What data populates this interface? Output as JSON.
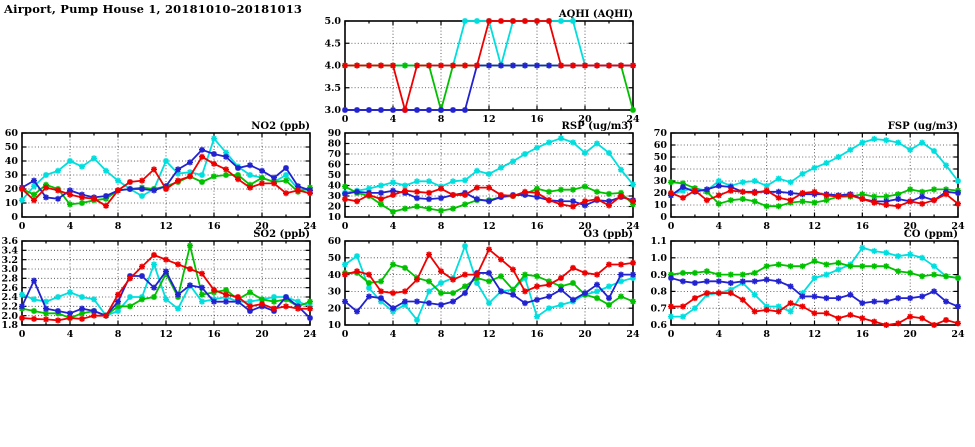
{
  "page": {
    "title": "Airport, Pump House 1, 20181010–20181013"
  },
  "colors": {
    "red": "#ee0000",
    "green": "#00c000",
    "blue": "#2222d0",
    "cyan": "#00dede"
  },
  "x_axis": {
    "min": 0,
    "max": 24,
    "major_step": 4,
    "minor_step": 2,
    "labels": [
      "0",
      "4",
      "8",
      "12",
      "16",
      "20",
      "24"
    ]
  },
  "chart_data": [
    {
      "id": "aqhi",
      "type": "line",
      "title": "AQHI (AQHI)",
      "ylim": [
        3.0,
        5.0
      ],
      "ytick_step": 0.5,
      "y_decimals": 1,
      "grid": true,
      "legend": "none",
      "x": [
        0,
        1,
        2,
        3,
        4,
        5,
        6,
        7,
        8,
        9,
        10,
        11,
        12,
        13,
        14,
        15,
        16,
        17,
        18,
        19,
        20,
        21,
        22,
        23,
        24
      ],
      "series": [
        {
          "color": "cyan",
          "values": [
            4,
            4,
            4,
            4,
            4,
            4,
            4,
            4,
            4,
            4,
            5,
            5,
            5,
            4,
            5,
            5,
            5,
            5,
            5,
            5,
            4,
            4,
            4,
            4,
            4
          ]
        },
        {
          "color": "green",
          "values": [
            4,
            4,
            4,
            4,
            4,
            4,
            4,
            4,
            3,
            4,
            4,
            4,
            4,
            4,
            4,
            4,
            4,
            4,
            4,
            4,
            4,
            4,
            4,
            4,
            3
          ]
        },
        {
          "color": "blue",
          "values": [
            3,
            3,
            3,
            3,
            3,
            3,
            3,
            3,
            3,
            3,
            3,
            4,
            4,
            4,
            4,
            4,
            4,
            4,
            4,
            4,
            4,
            4,
            4,
            4,
            4
          ]
        },
        {
          "color": "red",
          "values": [
            4,
            4,
            4,
            4,
            4,
            3,
            4,
            4,
            4,
            4,
            4,
            4,
            5,
            5,
            5,
            5,
            5,
            5,
            4,
            4,
            4,
            4,
            4,
            4,
            4
          ]
        }
      ]
    },
    {
      "id": "no2",
      "type": "line",
      "title": "NO2 (ppb)",
      "ylim": [
        0,
        60
      ],
      "ytick_step": 10,
      "y_decimals": 0,
      "grid": true,
      "legend": "none",
      "x": [
        0,
        1,
        2,
        3,
        4,
        5,
        6,
        7,
        8,
        9,
        10,
        11,
        12,
        13,
        14,
        15,
        16,
        17,
        18,
        19,
        20,
        21,
        22,
        23,
        24
      ],
      "series": [
        {
          "color": "cyan",
          "values": [
            12,
            22,
            30,
            33,
            40,
            36,
            42,
            33,
            26,
            20,
            15,
            20,
            40,
            31,
            32,
            30,
            56,
            46,
            36,
            30,
            28,
            25,
            30,
            20,
            19
          ]
        },
        {
          "color": "green",
          "values": [
            20,
            16,
            23,
            20,
            9,
            10,
            12,
            13,
            19,
            20,
            21,
            20,
            22,
            25,
            29,
            25,
            29,
            30,
            30,
            23,
            28,
            25,
            26,
            18,
            21
          ]
        },
        {
          "color": "blue",
          "values": [
            21,
            26,
            14,
            13,
            19,
            16,
            14,
            15,
            19,
            20,
            20,
            19,
            22,
            34,
            39,
            48,
            45,
            43,
            35,
            37,
            33,
            28,
            35,
            22,
            19
          ]
        },
        {
          "color": "red",
          "values": [
            20,
            12,
            21,
            19,
            16,
            14,
            13,
            8,
            19,
            25,
            26,
            34,
            20,
            26,
            29,
            43,
            38,
            34,
            27,
            21,
            24,
            24,
            17,
            19,
            17
          ]
        }
      ]
    },
    {
      "id": "rsp",
      "type": "line",
      "title": "RSP (ug/m3)",
      "ylim": [
        10,
        90
      ],
      "ytick_step": 10,
      "y_decimals": 0,
      "grid": true,
      "legend": "none",
      "x": [
        0,
        1,
        2,
        3,
        4,
        5,
        6,
        7,
        8,
        9,
        10,
        11,
        12,
        13,
        14,
        15,
        16,
        17,
        18,
        19,
        20,
        21,
        22,
        23,
        24
      ],
      "series": [
        {
          "color": "cyan",
          "values": [
            33,
            35,
            37,
            40,
            43,
            40,
            44,
            44,
            39,
            44,
            45,
            54,
            51,
            57,
            63,
            70,
            76,
            81,
            85,
            81,
            71,
            80,
            71,
            55,
            41
          ]
        },
        {
          "color": "green",
          "values": [
            39,
            33,
            30,
            22,
            15,
            18,
            20,
            18,
            16,
            18,
            22,
            26,
            26,
            29,
            30,
            32,
            37,
            34,
            36,
            36,
            39,
            34,
            32,
            33,
            22
          ]
        },
        {
          "color": "blue",
          "values": [
            32,
            34,
            33,
            33,
            35,
            33,
            28,
            27,
            28,
            31,
            33,
            27,
            25,
            29,
            31,
            31,
            29,
            26,
            25,
            25,
            21,
            26,
            25,
            29,
            26
          ]
        },
        {
          "color": "red",
          "values": [
            27,
            25,
            31,
            27,
            31,
            35,
            34,
            33,
            37,
            31,
            31,
            38,
            38,
            31,
            30,
            34,
            33,
            26,
            22,
            20,
            25,
            27,
            21,
            30,
            25
          ]
        }
      ]
    },
    {
      "id": "fsp",
      "type": "line",
      "title": "FSP (ug/m3)",
      "ylim": [
        0,
        70
      ],
      "ytick_step": 10,
      "y_decimals": 0,
      "grid": true,
      "legend": "none",
      "x": [
        0,
        1,
        2,
        3,
        4,
        5,
        6,
        7,
        8,
        9,
        10,
        11,
        12,
        13,
        14,
        15,
        16,
        17,
        18,
        19,
        20,
        21,
        22,
        23,
        24
      ],
      "series": [
        {
          "color": "cyan",
          "values": [
            19,
            22,
            24,
            22,
            30,
            26,
            29,
            30,
            26,
            32,
            29,
            36,
            41,
            45,
            50,
            56,
            62,
            65,
            64,
            62,
            56,
            62,
            55,
            43,
            30
          ]
        },
        {
          "color": "green",
          "values": [
            29,
            28,
            24,
            21,
            11,
            14,
            15,
            13,
            9,
            9,
            12,
            13,
            12,
            14,
            17,
            17,
            19,
            17,
            17,
            19,
            23,
            21,
            23,
            23,
            22
          ]
        },
        {
          "color": "blue",
          "values": [
            18,
            25,
            21,
            23,
            26,
            25,
            21,
            21,
            21,
            21,
            20,
            19,
            19,
            19,
            18,
            19,
            15,
            13,
            13,
            15,
            13,
            17,
            14,
            21,
            20
          ]
        },
        {
          "color": "red",
          "values": [
            20,
            16,
            22,
            14,
            18,
            22,
            21,
            20,
            22,
            16,
            14,
            20,
            21,
            18,
            17,
            18,
            15,
            12,
            10,
            9,
            13,
            11,
            14,
            19,
            11
          ]
        }
      ]
    },
    {
      "id": "so2",
      "type": "line",
      "title": "SO2 (ppb)",
      "ylim": [
        1.8,
        3.6
      ],
      "ytick_step": 0.2,
      "y_decimals": 1,
      "grid": true,
      "legend": "none",
      "x": [
        0,
        1,
        2,
        3,
        4,
        5,
        6,
        7,
        8,
        9,
        10,
        11,
        12,
        13,
        14,
        15,
        16,
        17,
        18,
        19,
        20,
        21,
        22,
        23,
        24
      ],
      "series": [
        {
          "color": "cyan",
          "values": [
            2.45,
            2.35,
            2.3,
            2.4,
            2.5,
            2.4,
            2.35,
            2.0,
            2.1,
            2.4,
            2.4,
            3.1,
            2.35,
            2.15,
            2.65,
            2.3,
            2.35,
            2.4,
            2.3,
            2.3,
            2.35,
            2.4,
            2.4,
            2.3,
            2.2
          ]
        },
        {
          "color": "green",
          "values": [
            2.15,
            2.1,
            2.05,
            2.05,
            1.95,
            2.05,
            2.1,
            2.0,
            2.2,
            2.2,
            2.35,
            2.4,
            2.9,
            2.4,
            3.5,
            2.45,
            2.5,
            2.55,
            2.35,
            2.5,
            2.35,
            2.3,
            2.35,
            2.2,
            2.3
          ]
        },
        {
          "color": "blue",
          "values": [
            2.2,
            2.75,
            2.15,
            2.1,
            2.05,
            2.15,
            2.1,
            2.0,
            2.3,
            2.85,
            2.85,
            2.6,
            2.95,
            2.45,
            2.65,
            2.6,
            2.3,
            2.3,
            2.3,
            2.1,
            2.2,
            2.1,
            2.4,
            2.2,
            1.95
          ]
        },
        {
          "color": "red",
          "values": [
            1.95,
            1.93,
            1.92,
            1.9,
            1.95,
            1.93,
            2.0,
            2.0,
            2.45,
            2.8,
            3.05,
            3.3,
            3.2,
            3.1,
            3.0,
            2.9,
            2.55,
            2.45,
            2.4,
            2.2,
            2.25,
            2.15,
            2.2,
            2.15,
            2.15
          ]
        }
      ]
    },
    {
      "id": "o3",
      "type": "line",
      "title": "O3 (ppb)",
      "ylim": [
        10,
        60
      ],
      "ytick_step": 10,
      "y_decimals": 0,
      "grid": true,
      "legend": "none",
      "x": [
        0,
        1,
        2,
        3,
        4,
        5,
        6,
        7,
        8,
        9,
        10,
        11,
        12,
        13,
        14,
        15,
        16,
        17,
        18,
        19,
        20,
        21,
        22,
        23,
        24
      ],
      "series": [
        {
          "color": "cyan",
          "values": [
            46,
            51,
            32,
            24,
            18,
            22,
            13,
            30,
            35,
            38,
            57,
            35,
            23,
            30,
            31,
            38,
            15,
            20,
            22,
            24,
            28,
            30,
            33,
            36,
            38
          ]
        },
        {
          "color": "green",
          "values": [
            41,
            41,
            35,
            36,
            46,
            44,
            38,
            36,
            29,
            29,
            33,
            38,
            36,
            39,
            31,
            40,
            39,
            36,
            33,
            35,
            28,
            26,
            22,
            27,
            24
          ]
        },
        {
          "color": "blue",
          "values": [
            24,
            18,
            27,
            26,
            20,
            24,
            24,
            23,
            22,
            24,
            29,
            41,
            41,
            30,
            28,
            23,
            25,
            27,
            31,
            25,
            29,
            34,
            26,
            40,
            40
          ]
        },
        {
          "color": "red",
          "values": [
            40,
            42,
            40,
            30,
            29,
            30,
            37,
            52,
            42,
            37,
            40,
            40,
            55,
            49,
            43,
            30,
            33,
            34,
            38,
            44,
            41,
            40,
            46,
            46,
            47
          ]
        }
      ]
    },
    {
      "id": "co",
      "type": "line",
      "title": "CO (ppm)",
      "ylim": [
        0.6,
        1.1
      ],
      "ytick_step": 0.1,
      "y_decimals": 1,
      "grid": true,
      "legend": "none",
      "x": [
        0,
        1,
        2,
        3,
        4,
        5,
        6,
        7,
        8,
        9,
        10,
        11,
        12,
        13,
        14,
        15,
        16,
        17,
        18,
        19,
        20,
        21,
        22,
        23,
        24
      ],
      "series": [
        {
          "color": "cyan",
          "values": [
            0.65,
            0.65,
            0.7,
            0.78,
            0.79,
            0.81,
            0.85,
            0.78,
            0.71,
            0.71,
            0.68,
            0.79,
            0.88,
            0.9,
            0.93,
            0.96,
            1.06,
            1.04,
            1.03,
            1.01,
            1.02,
            1.0,
            0.95,
            0.89,
            0.88
          ]
        },
        {
          "color": "green",
          "values": [
            0.9,
            0.91,
            0.91,
            0.92,
            0.9,
            0.9,
            0.9,
            0.91,
            0.95,
            0.96,
            0.95,
            0.95,
            0.98,
            0.96,
            0.97,
            0.95,
            0.95,
            0.95,
            0.95,
            0.92,
            0.91,
            0.89,
            0.9,
            0.89,
            0.88
          ]
        },
        {
          "color": "blue",
          "values": [
            0.88,
            0.86,
            0.85,
            0.86,
            0.86,
            0.85,
            0.86,
            0.86,
            0.87,
            0.86,
            0.83,
            0.77,
            0.77,
            0.76,
            0.76,
            0.78,
            0.73,
            0.74,
            0.74,
            0.76,
            0.76,
            0.77,
            0.8,
            0.74,
            0.71
          ]
        },
        {
          "color": "red",
          "values": [
            0.71,
            0.71,
            0.76,
            0.79,
            0.79,
            0.79,
            0.75,
            0.68,
            0.69,
            0.68,
            0.73,
            0.71,
            0.67,
            0.67,
            0.64,
            0.66,
            0.64,
            0.62,
            0.6,
            0.61,
            0.65,
            0.64,
            0.6,
            0.63,
            0.61
          ]
        }
      ]
    }
  ]
}
